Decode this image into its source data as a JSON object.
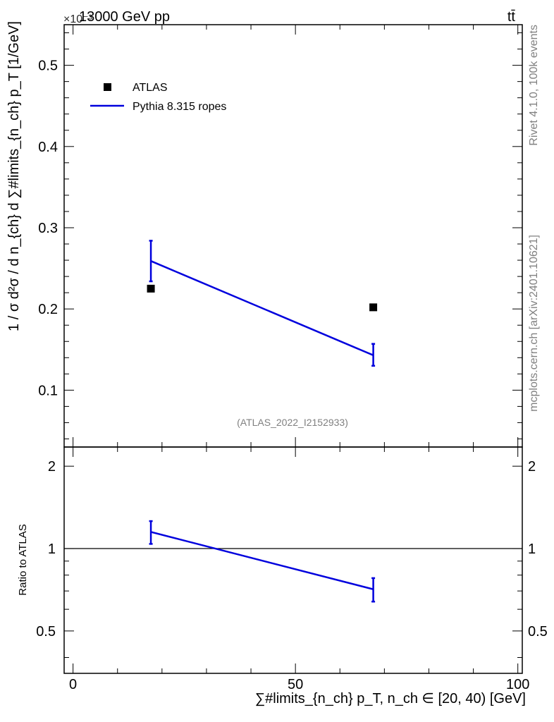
{
  "header": {
    "energy_label": "13000 GeV pp",
    "process_label": "tt̄",
    "exponent_label": "×10⁻³"
  },
  "side_labels": {
    "rivet": "Rivet 4.1.0,  100k events",
    "mcplots": "mcplots.cern.ch [arXiv:2401.10621]"
  },
  "analysis_label": "(ATLAS_2022_I2152933)",
  "legend": [
    {
      "label": "ATLAS",
      "marker": "square",
      "color": "#000000"
    },
    {
      "label": "Pythia 8.315 ropes",
      "marker": "line",
      "color": "#0000dd"
    }
  ],
  "chart_data": [
    {
      "type": "scatter",
      "panel": "main",
      "ylabel": "1 / σ d²σ / d n_{ch} d ∑#limits_{n_ch} p_T [1/GeV]",
      "yscale_note": "×10⁻³",
      "xlim": [
        -2,
        101
      ],
      "ylim": [
        0.03,
        0.55
      ],
      "yticks": [
        0.1,
        0.2,
        0.3,
        0.4,
        0.5
      ],
      "ytick_labels": [
        "0.1",
        "0.2",
        "0.3",
        "0.4",
        "0.5"
      ],
      "series": [
        {
          "name": "ATLAS",
          "style": "markers",
          "color": "#000000",
          "x": [
            17.5,
            67.5
          ],
          "y": [
            0.225,
            0.202
          ]
        },
        {
          "name": "Pythia 8.315 ropes",
          "style": "line",
          "color": "#0000dd",
          "x": [
            17.5,
            67.5
          ],
          "y": [
            0.259,
            0.143
          ],
          "yerr_low": [
            0.234,
            0.13
          ],
          "yerr_high": [
            0.284,
            0.157
          ]
        }
      ]
    },
    {
      "type": "line",
      "panel": "ratio",
      "ylabel": "Ratio to ATLAS",
      "xlabel": "∑#limits_{n_ch} p_T, n_ch ∈ [20, 40) [GeV]",
      "xlim": [
        -2,
        101
      ],
      "ylim": [
        0.35,
        2.35
      ],
      "yscale": "log",
      "xticks": [
        0,
        50,
        100
      ],
      "xtick_labels": [
        "0",
        "50",
        "100"
      ],
      "yticks": [
        0.5,
        1,
        2
      ],
      "ytick_labels": [
        "0.5",
        "1",
        "2"
      ],
      "reference_line": 1,
      "series": [
        {
          "name": "Pythia 8.315 ropes",
          "color": "#0000dd",
          "x": [
            17.5,
            67.5
          ],
          "y": [
            1.15,
            0.71
          ],
          "yerr_low": [
            1.04,
            0.64
          ],
          "yerr_high": [
            1.26,
            0.78
          ]
        }
      ]
    }
  ]
}
